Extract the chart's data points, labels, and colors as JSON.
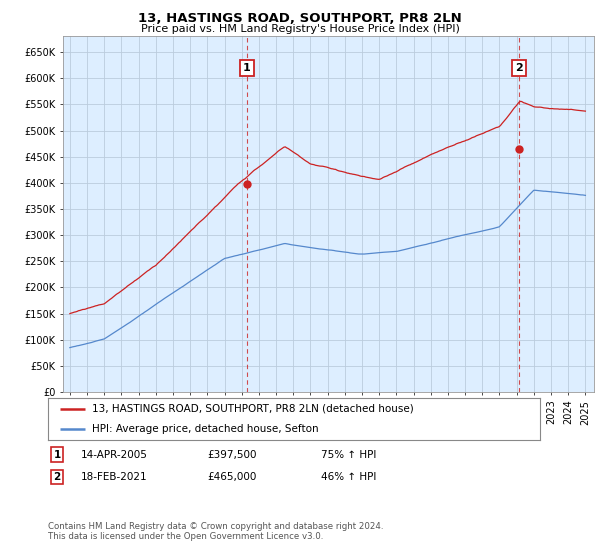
{
  "title": "13, HASTINGS ROAD, SOUTHPORT, PR8 2LN",
  "subtitle": "Price paid vs. HM Land Registry's House Price Index (HPI)",
  "hpi_color": "#5588cc",
  "price_color": "#cc2222",
  "bg_fill_color": "#ddeeff",
  "marker1_date": 2005.28,
  "marker1_price": 397500,
  "marker2_date": 2021.12,
  "marker2_price": 465000,
  "legend_line1": "13, HASTINGS ROAD, SOUTHPORT, PR8 2LN (detached house)",
  "legend_line2": "HPI: Average price, detached house, Sefton",
  "footnote": "Contains HM Land Registry data © Crown copyright and database right 2024.\nThis data is licensed under the Open Government Licence v3.0.",
  "background_color": "#ffffff",
  "grid_color": "#bbccdd"
}
